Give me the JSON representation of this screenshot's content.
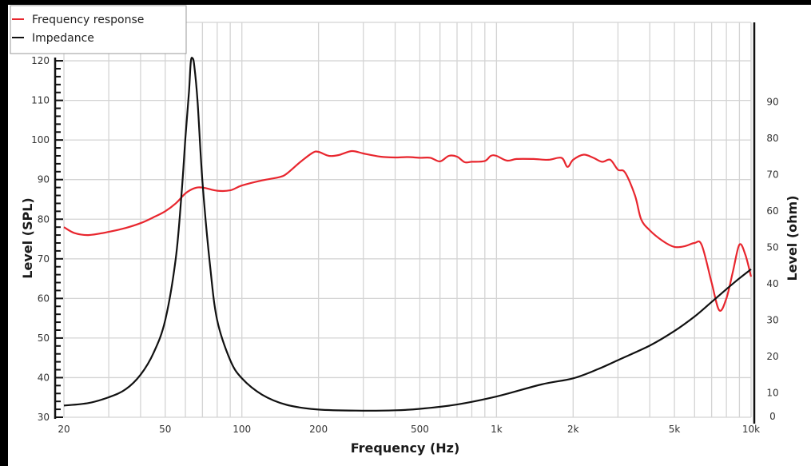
{
  "chart_data": {
    "type": "line",
    "title": "",
    "xlabel": "Frequency (Hz)",
    "ylabel": "Level (SPL)",
    "ylabel_right": "Level (ohm)",
    "xscale": "log",
    "xlim": [
      20,
      10000
    ],
    "ylim": [
      30,
      125
    ],
    "ylim_right": [
      0,
      95
    ],
    "grid": true,
    "legend_position": "top-left",
    "x_ticks": [
      20,
      50,
      100,
      200,
      500,
      1000,
      2000,
      5000,
      10000
    ],
    "x_tick_labels": [
      "20",
      "50",
      "100",
      "200",
      "500",
      "1k",
      "2k",
      "5k",
      "10k"
    ],
    "y_ticks": [
      30,
      40,
      50,
      60,
      70,
      80,
      90,
      100,
      110,
      120
    ],
    "y_ticks_right": [
      0,
      10,
      20,
      30,
      40,
      50,
      60,
      70,
      80,
      90
    ],
    "series": [
      {
        "name": "Frequency response",
        "axis": "left",
        "color": "#e8262e",
        "points": [
          [
            20,
            78
          ],
          [
            22,
            76.5
          ],
          [
            25,
            76
          ],
          [
            30,
            76.8
          ],
          [
            35,
            77.8
          ],
          [
            40,
            79
          ],
          [
            45,
            80.5
          ],
          [
            50,
            82
          ],
          [
            55,
            84
          ],
          [
            60,
            86.5
          ],
          [
            65,
            87.8
          ],
          [
            70,
            88
          ],
          [
            80,
            87.2
          ],
          [
            90,
            87.3
          ],
          [
            100,
            88.5
          ],
          [
            120,
            89.8
          ],
          [
            140,
            90.6
          ],
          [
            150,
            91.5
          ],
          [
            170,
            94.5
          ],
          [
            190,
            96.8
          ],
          [
            200,
            97
          ],
          [
            220,
            96
          ],
          [
            240,
            96.2
          ],
          [
            270,
            97.2
          ],
          [
            300,
            96.6
          ],
          [
            350,
            95.8
          ],
          [
            400,
            95.6
          ],
          [
            450,
            95.7
          ],
          [
            500,
            95.5
          ],
          [
            550,
            95.5
          ],
          [
            600,
            94.6
          ],
          [
            650,
            96
          ],
          [
            700,
            95.8
          ],
          [
            750,
            94.4
          ],
          [
            800,
            94.5
          ],
          [
            900,
            94.7
          ],
          [
            950,
            96
          ],
          [
            1000,
            96
          ],
          [
            1100,
            94.8
          ],
          [
            1200,
            95.2
          ],
          [
            1400,
            95.2
          ],
          [
            1600,
            95
          ],
          [
            1800,
            95.5
          ],
          [
            1900,
            93.2
          ],
          [
            2000,
            95
          ],
          [
            2200,
            96.3
          ],
          [
            2400,
            95.5
          ],
          [
            2600,
            94.5
          ],
          [
            2800,
            95
          ],
          [
            3000,
            92.5
          ],
          [
            3200,
            91.8
          ],
          [
            3500,
            86
          ],
          [
            3700,
            80
          ],
          [
            4000,
            77.2
          ],
          [
            4500,
            74.5
          ],
          [
            5000,
            73
          ],
          [
            5500,
            73.2
          ],
          [
            6000,
            74
          ],
          [
            6400,
            73.5
          ],
          [
            7000,
            64
          ],
          [
            7500,
            57
          ],
          [
            8000,
            60
          ],
          [
            8500,
            67
          ],
          [
            9000,
            73.6
          ],
          [
            9500,
            71
          ],
          [
            10000,
            65.5
          ]
        ]
      },
      {
        "name": "Impedance",
        "axis": "right",
        "color": "#111111",
        "points": [
          [
            20,
            6.5
          ],
          [
            25,
            7.2
          ],
          [
            30,
            8.8
          ],
          [
            35,
            11
          ],
          [
            40,
            15
          ],
          [
            45,
            21
          ],
          [
            50,
            30
          ],
          [
            55,
            47
          ],
          [
            58,
            65
          ],
          [
            60,
            80
          ],
          [
            62,
            93
          ],
          [
            63,
            101
          ],
          [
            64,
            102
          ],
          [
            65,
            100
          ],
          [
            67,
            90
          ],
          [
            70,
            68
          ],
          [
            75,
            45
          ],
          [
            80,
            30
          ],
          [
            90,
            19
          ],
          [
            100,
            14
          ],
          [
            120,
            9.5
          ],
          [
            150,
            6.7
          ],
          [
            200,
            5.4
          ],
          [
            300,
            5.1
          ],
          [
            400,
            5.2
          ],
          [
            500,
            5.6
          ],
          [
            700,
            6.8
          ],
          [
            1000,
            9
          ],
          [
            1500,
            12.3
          ],
          [
            2000,
            14
          ],
          [
            2500,
            16.5
          ],
          [
            3000,
            19
          ],
          [
            4000,
            23
          ],
          [
            5000,
            27
          ],
          [
            6000,
            31
          ],
          [
            7000,
            35
          ],
          [
            8000,
            38.5
          ],
          [
            9000,
            41.5
          ],
          [
            10000,
            44
          ]
        ]
      }
    ]
  },
  "legend": {
    "items": [
      {
        "label": "Frequency response",
        "color": "#e8262e"
      },
      {
        "label": "Impedance",
        "color": "#111111"
      }
    ]
  },
  "axes": {
    "x_title": "Frequency (Hz)",
    "y_left_title": "Level (SPL)",
    "y_right_title": "Level (ohm)"
  }
}
